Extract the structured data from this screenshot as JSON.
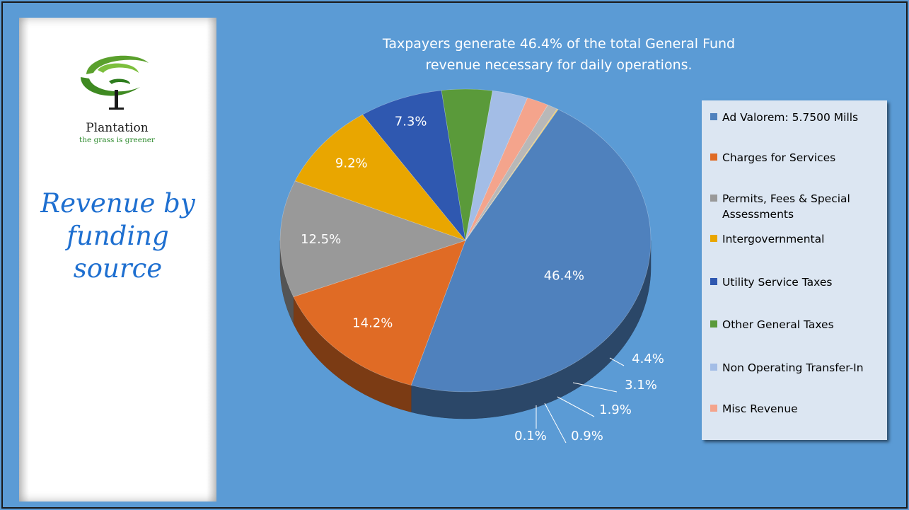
{
  "logo": {
    "name": "Plantation",
    "tagline": "the grass is greener"
  },
  "sidebar": {
    "title_lines": [
      "Revenue by",
      "funding",
      "source"
    ]
  },
  "chart_data": {
    "type": "pie",
    "title": "Taxpayers generate 46.4% of the total General Fund revenue necessary for daily operations.",
    "title_lines": [
      "Taxpayers generate 46.4% of the total General Fund",
      "revenue necessary for daily operations."
    ],
    "legend_position": "right",
    "three_d": true,
    "slices": [
      {
        "label": "Ad Valorem: 5.7500 Mills",
        "value": 46.4,
        "data_label": "46.4%",
        "color": "#4f81bd"
      },
      {
        "label": "Charges for Services",
        "value": 14.2,
        "data_label": "14.2%",
        "color": "#e06b25"
      },
      {
        "label": "Permits, Fees & Special Assessments",
        "value": 12.5,
        "data_label": "12.5%",
        "color": "#999999"
      },
      {
        "label": "Intergovernmental",
        "value": 9.2,
        "data_label": "9.2%",
        "color": "#e9a600"
      },
      {
        "label": "Utility Service Taxes",
        "value": 7.3,
        "data_label": "7.3%",
        "color": "#2f58b0"
      },
      {
        "label": "Other General Taxes",
        "value": 4.4,
        "data_label": "4.4%",
        "color": "#5a9a3a"
      },
      {
        "label": "Non Operating Transfer-In",
        "value": 3.1,
        "data_label": "3.1%",
        "color": "#a3bde6"
      },
      {
        "label": "Misc Revenue",
        "value": 1.9,
        "data_label": "1.9%",
        "color": "#f4a48c"
      },
      {
        "label": "",
        "value": 0.9,
        "data_label": "0.9%",
        "color": "#b8b8b8"
      },
      {
        "label": "",
        "value": 0.1,
        "data_label": "0.1%",
        "color": "#f2c95e"
      }
    ]
  }
}
